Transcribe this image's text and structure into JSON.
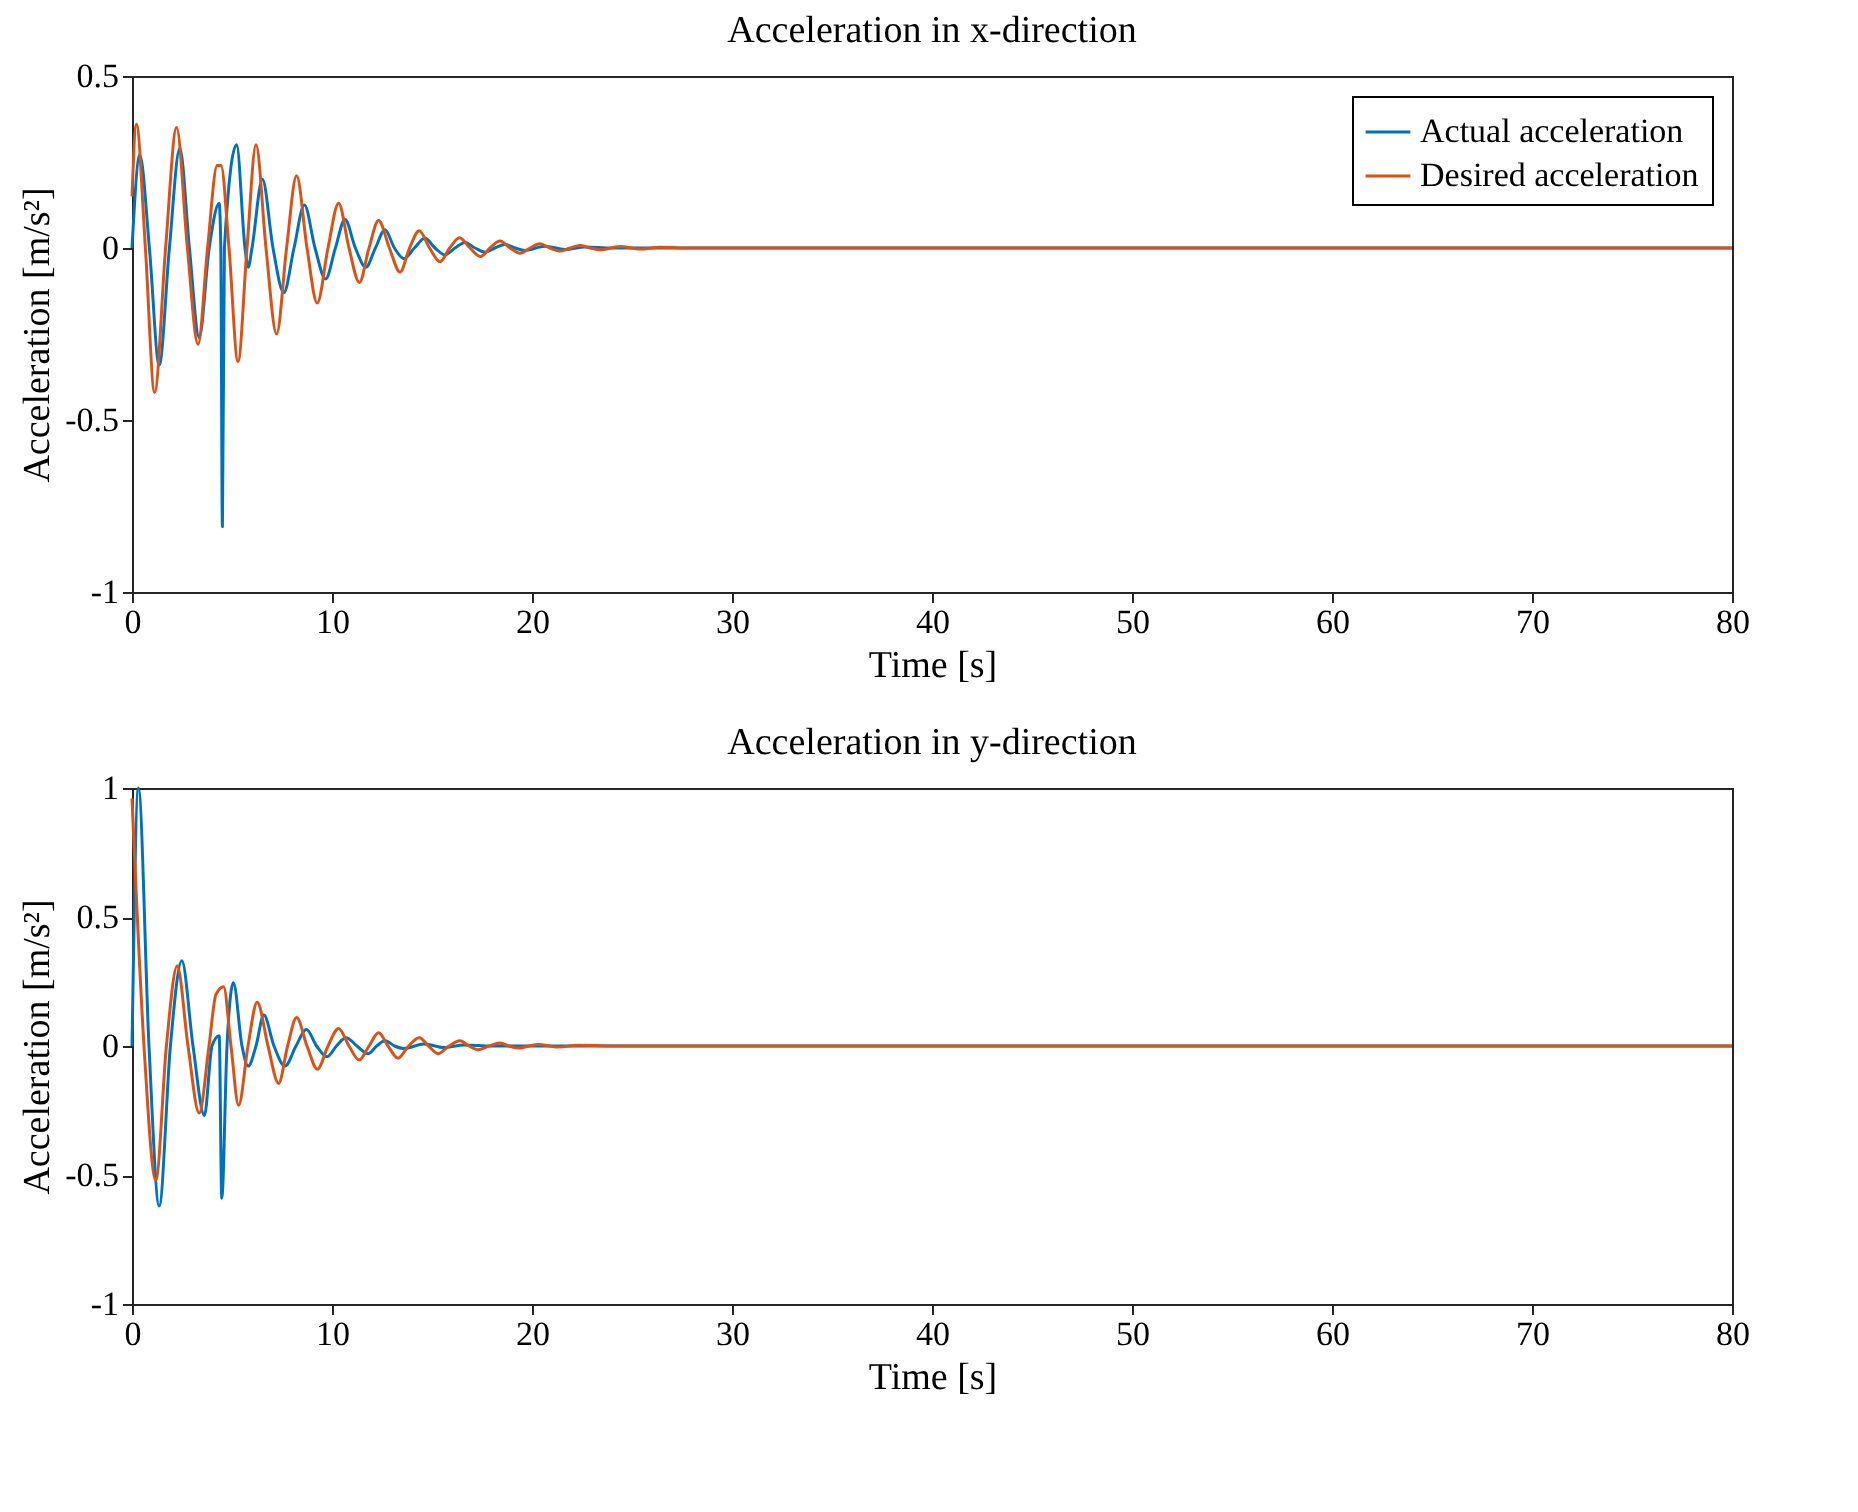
{
  "chart_data": [
    {
      "type": "line",
      "title": "Acceleration in x-direction",
      "xlabel": "Time [s]",
      "ylabel": "Acceleration [m/s²]",
      "xlim": [
        0,
        80
      ],
      "ylim": [
        -1,
        0.5
      ],
      "xticks": [
        0,
        10,
        20,
        30,
        40,
        50,
        60,
        70,
        80
      ],
      "yticks": [
        -1,
        -0.5,
        0,
        0.5
      ],
      "grid": false,
      "legend": "top right",
      "line_style": "solid",
      "series": [
        {
          "name": "Actual acceleration",
          "color": "#0072bd",
          "x": [
            0,
            0.39,
            0.87,
            1.36,
            1.87,
            2.39,
            2.87,
            3.36,
            3.86,
            4.36,
            4.44,
            4.52,
            4.62,
            5.23,
            5.65,
            5.81,
            6.0,
            6.52,
            7.05,
            7.59,
            8.1,
            8.62,
            9.15,
            9.68,
            10.17,
            10.65,
            11.17,
            11.69,
            12.17,
            12.65,
            13.12,
            13.6,
            14.12,
            14.65,
            15.15,
            15.65,
            16.15,
            16.65,
            17.15,
            17.65,
            18.15,
            18.65,
            19.15,
            19.65,
            20.65,
            21.65,
            22.65,
            24,
            80
          ],
          "values": [
            0,
            0.27,
            0,
            -0.34,
            0,
            0.29,
            0,
            -0.26,
            0,
            0.13,
            0,
            -0.81,
            0,
            0.3,
            0,
            -0.056,
            0,
            0.2,
            0,
            -0.13,
            0,
            0.125,
            0,
            -0.09,
            0,
            0.083,
            0,
            -0.056,
            0,
            0.053,
            0,
            -0.031,
            0,
            0.028,
            0,
            -0.02,
            0,
            0.016,
            0,
            -0.012,
            0,
            0.01,
            0,
            -0.007,
            0.005,
            -0.004,
            0.003,
            0,
            0
          ]
        },
        {
          "name": "Desired acceleration",
          "color": "#d95319",
          "x": [
            0,
            0.22,
            0.67,
            1.13,
            1.68,
            2.23,
            2.77,
            3.3,
            3.78,
            4.26,
            4.45,
            4.85,
            5.3,
            5.75,
            6.2,
            6.7,
            7.23,
            7.73,
            8.23,
            8.75,
            9.26,
            9.8,
            10.33,
            10.85,
            11.37,
            11.85,
            12.33,
            12.87,
            13.4,
            13.88,
            14.36,
            14.88,
            15.4,
            15.88,
            16.37,
            16.9,
            17.43,
            17.9,
            18.4,
            18.9,
            19.4,
            19.9,
            20.4,
            20.9,
            21.4,
            21.9,
            22.4,
            22.9,
            23.4,
            24.4,
            25.4,
            26.4,
            28,
            80
          ],
          "values": [
            0.15,
            0.36,
            0,
            -0.42,
            0,
            0.35,
            0,
            -0.28,
            0,
            0.24,
            0.24,
            0,
            -0.33,
            0,
            0.3,
            0,
            -0.25,
            0,
            0.21,
            0,
            -0.16,
            0,
            0.13,
            0,
            -0.1,
            0,
            0.08,
            0,
            -0.07,
            0,
            0.05,
            0,
            -0.04,
            0,
            0.03,
            0,
            -0.025,
            0,
            0.02,
            0,
            -0.015,
            0,
            0.012,
            0,
            -0.009,
            0,
            0.007,
            0,
            -0.005,
            0.004,
            -0.003,
            0.002,
            0,
            0
          ]
        }
      ]
    },
    {
      "type": "line",
      "title": "Acceleration in y-direction",
      "xlabel": "Time [s]",
      "ylabel": "Acceleration [m/s²]",
      "xlim": [
        0,
        80
      ],
      "ylim": [
        -1,
        1
      ],
      "xticks": [
        0,
        10,
        20,
        30,
        40,
        50,
        60,
        70,
        80
      ],
      "yticks": [
        -1,
        -0.5,
        0,
        0.5,
        1
      ],
      "grid": false,
      "legend": "top right",
      "line_style": "solid",
      "series": [
        {
          "name": "Actual acceleration",
          "color": "#0072bd",
          "x": [
            0,
            0.32,
            0.85,
            1.36,
            1.92,
            2.49,
            3.05,
            3.62,
            4.0,
            4.36,
            4.49,
            4.75,
            5.07,
            5.5,
            5.81,
            6.2,
            6.59,
            7.1,
            7.65,
            8.2,
            8.72,
            9.23,
            9.75,
            10.22,
            10.7,
            11.25,
            11.8,
            12.23,
            12.66,
            13.13,
            13.6,
            14.6,
            15.6,
            16.6,
            18,
            80
          ],
          "values": [
            0,
            1.0,
            0,
            -0.62,
            0,
            0.33,
            0,
            -0.27,
            0,
            0.04,
            -0.59,
            0,
            0.245,
            0,
            -0.078,
            0,
            0.12,
            0,
            -0.078,
            0,
            0.064,
            0,
            -0.042,
            0,
            0.032,
            0,
            -0.03,
            0,
            0.02,
            0,
            -0.01,
            0.008,
            -0.006,
            0.004,
            0,
            0
          ]
        },
        {
          "name": "Desired acceleration",
          "color": "#d95319",
          "x": [
            0,
            0.6,
            1.19,
            1.72,
            2.26,
            2.8,
            3.36,
            3.85,
            4.2,
            4.58,
            4.95,
            5.33,
            5.8,
            6.26,
            6.8,
            7.33,
            7.78,
            8.23,
            8.75,
            9.27,
            9.8,
            10.33,
            10.85,
            11.36,
            11.85,
            12.33,
            12.8,
            13.3,
            13.83,
            14.36,
            14.83,
            15.3,
            15.85,
            16.4,
            16.85,
            17.3,
            17.85,
            18.4,
            18.85,
            19.3,
            20.3,
            21.3,
            22.3,
            24,
            80
          ],
          "values": [
            0.96,
            0,
            -0.52,
            0,
            0.31,
            0,
            -0.26,
            0,
            0.2,
            0.23,
            0,
            -0.23,
            0,
            0.17,
            0,
            -0.145,
            0,
            0.11,
            0,
            -0.09,
            0,
            0.068,
            0,
            -0.054,
            0,
            0.051,
            0,
            -0.047,
            0,
            0.032,
            0,
            -0.03,
            0,
            0.02,
            0,
            -0.015,
            0,
            0.012,
            0,
            -0.008,
            0.006,
            -0.004,
            0.003,
            0,
            0
          ]
        }
      ]
    }
  ]
}
